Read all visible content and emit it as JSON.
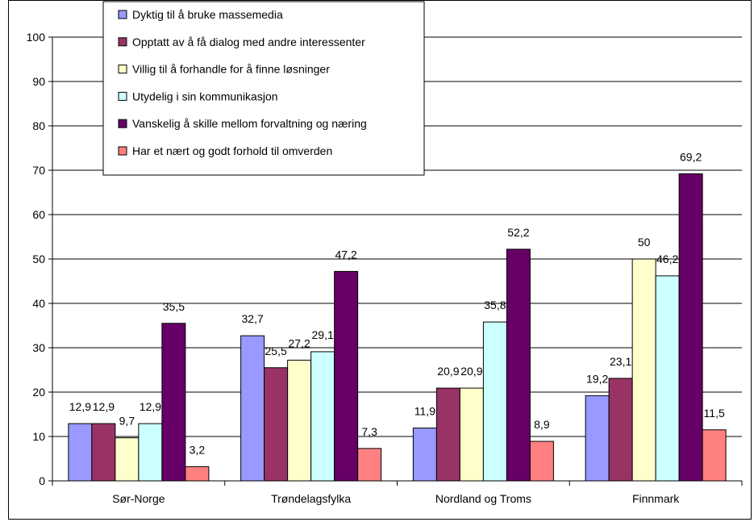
{
  "chart_data": {
    "type": "bar",
    "title": "",
    "xlabel": "",
    "ylabel": "",
    "ylim": [
      0,
      100
    ],
    "yticks": [
      0,
      10,
      20,
      30,
      40,
      50,
      60,
      70,
      80,
      90,
      100
    ],
    "grid": true,
    "legend_position": "top-center",
    "categories": [
      "Sør-Norge",
      "Trøndelagsfylka",
      "Nordland og Troms",
      "Finnmark"
    ],
    "series": [
      {
        "name": "Dyktig til å bruke massemedia",
        "color": "#9999ff",
        "values": [
          12.9,
          32.7,
          11.9,
          19.2
        ],
        "labels": [
          "12,9",
          "32,7",
          "11,9",
          "19,2"
        ]
      },
      {
        "name": "Opptatt av å få dialog med andre interessenter",
        "color": "#993366",
        "values": [
          12.9,
          25.5,
          20.9,
          23.1
        ],
        "labels": [
          "12,9",
          "25,5",
          "20,9",
          "23,1"
        ]
      },
      {
        "name": "Villig til å forhandle for å finne løsninger",
        "color": "#ffffcc",
        "values": [
          9.7,
          27.2,
          20.9,
          50
        ],
        "labels": [
          "9,7",
          "27,2",
          "20,9",
          "50"
        ]
      },
      {
        "name": "Utydelig i sin kommunikasjon",
        "color": "#ccffff",
        "values": [
          12.9,
          29.1,
          35.8,
          46.2
        ],
        "labels": [
          "12,9",
          "29,1",
          "35,8",
          "46,2"
        ]
      },
      {
        "name": "Vanskelig å skille mellom forvaltning og næring",
        "color": "#660066",
        "values": [
          35.5,
          47.2,
          52.2,
          69.2
        ],
        "labels": [
          "35,5",
          "47,2",
          "52,2",
          "69,2"
        ]
      },
      {
        "name": "Har et nært og godt forhold til omverden",
        "color": "#ff8080",
        "values": [
          3.2,
          7.3,
          8.9,
          11.5
        ],
        "labels": [
          "3,2",
          "7,3",
          "8,9",
          "11,5"
        ]
      }
    ]
  }
}
